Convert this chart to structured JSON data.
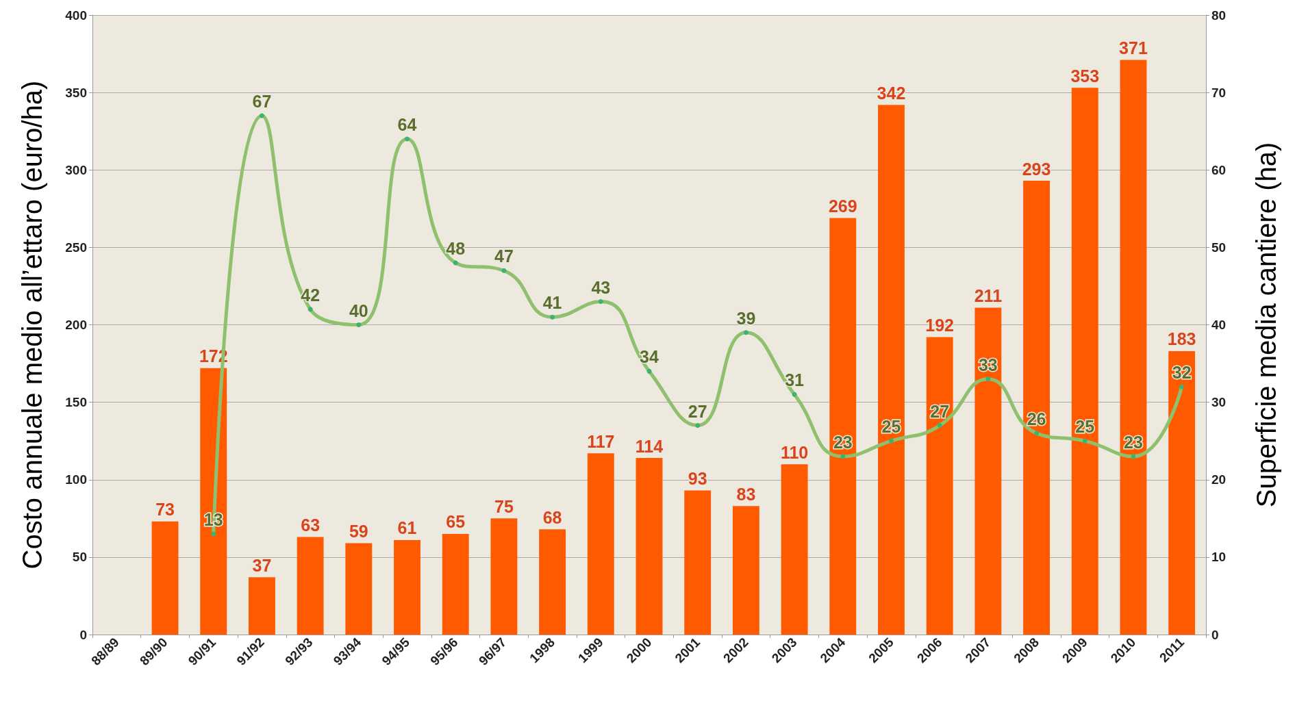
{
  "chart_data": {
    "type": "bar",
    "categories": [
      "88/89",
      "89/90",
      "90/91",
      "91/92",
      "92/93",
      "93/94",
      "94/95",
      "95/96",
      "96/97",
      "1998",
      "1999",
      "2000",
      "2001",
      "2002",
      "2003",
      "2004",
      "2005",
      "2006",
      "2007",
      "2008",
      "2009",
      "2010",
      "2011"
    ],
    "series": [
      {
        "color": "#ff5a00",
        "values": [
          null,
          73,
          172,
          37,
          63,
          59,
          61,
          65,
          75,
          68,
          117,
          114,
          93,
          83,
          110,
          269,
          342,
          192,
          211,
          293,
          353,
          371,
          183
        ]
      },
      {
        "type": "line",
        "axis": "y2",
        "color": "#8fc06e",
        "values": [
          null,
          null,
          13,
          67,
          42,
          40,
          64,
          48,
          47,
          41,
          43,
          34,
          27,
          39,
          31,
          23,
          25,
          27,
          33,
          26,
          25,
          23,
          32
        ]
      }
    ],
    "ylabel": "Costo annuale medio all’ettaro (euro/ha)",
    "y2label": "Superficie media cantiere (ha)",
    "ylim": [
      0,
      400
    ],
    "yticks": [
      0,
      50,
      100,
      150,
      200,
      250,
      300,
      350,
      400
    ],
    "y2lim": [
      0,
      80
    ],
    "y2ticks": [
      0,
      10,
      20,
      30,
      40,
      50,
      60,
      70,
      80
    ],
    "grid": "y",
    "data_labels": true,
    "marker": "circle"
  }
}
